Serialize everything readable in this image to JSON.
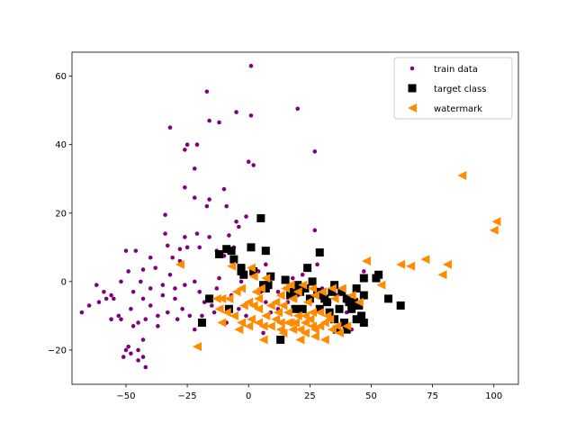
{
  "chart_data": {
    "type": "scatter",
    "title": "",
    "xlabel": "",
    "ylabel": "",
    "xlim": [
      -72,
      110
    ],
    "ylim": [
      -30,
      67
    ],
    "grid": false,
    "legend_position": "top-right",
    "x_ticks": [
      -50,
      -25,
      0,
      25,
      50,
      75,
      100
    ],
    "y_ticks": [
      -20,
      0,
      20,
      40,
      60
    ],
    "series": [
      {
        "name": "train data",
        "marker": "circle",
        "color": "#800080",
        "points": [
          [
            1,
            63
          ],
          [
            -17,
            55.5
          ],
          [
            -5,
            49.5
          ],
          [
            1,
            48.5
          ],
          [
            -16,
            47
          ],
          [
            20,
            50.5
          ],
          [
            -32,
            45
          ],
          [
            -12,
            46.5
          ],
          [
            27,
            38
          ],
          [
            -25,
            40
          ],
          [
            -21,
            40
          ],
          [
            -26,
            38.5
          ],
          [
            -22,
            33
          ],
          [
            0,
            35
          ],
          [
            2,
            34
          ],
          [
            -26,
            27.5
          ],
          [
            -22,
            24.5
          ],
          [
            -10,
            27
          ],
          [
            -9,
            22
          ],
          [
            -17,
            22
          ],
          [
            -16,
            24
          ],
          [
            -34,
            19.5
          ],
          [
            -5,
            17.5
          ],
          [
            -34,
            14
          ],
          [
            -21,
            14
          ],
          [
            -1,
            19
          ],
          [
            -4,
            16
          ],
          [
            -8,
            13.5
          ],
          [
            -16,
            13
          ],
          [
            -26,
            13
          ],
          [
            -33,
            10.5
          ],
          [
            -25,
            10
          ],
          [
            -31,
            7
          ],
          [
            -20,
            10
          ],
          [
            -28,
            9.5
          ],
          [
            -13,
            9
          ],
          [
            -6,
            10
          ],
          [
            -10,
            7.5
          ],
          [
            -3,
            3
          ],
          [
            1,
            4
          ],
          [
            4,
            3
          ],
          [
            7,
            5
          ],
          [
            -28,
            6
          ],
          [
            -40,
            7
          ],
          [
            -43,
            3.5
          ],
          [
            -38,
            4
          ],
          [
            -46,
            9
          ],
          [
            -50,
            9
          ],
          [
            -52,
            0
          ],
          [
            -56,
            -4
          ],
          [
            -47,
            -3
          ],
          [
            -49,
            3
          ],
          [
            -43,
            -5
          ],
          [
            -35,
            -4
          ],
          [
            -30,
            -5
          ],
          [
            -40,
            -7
          ],
          [
            -37,
            -10
          ],
          [
            -29,
            -11
          ],
          [
            -33,
            -9
          ],
          [
            -37,
            -13
          ],
          [
            -42,
            -11
          ],
          [
            -45,
            -12
          ],
          [
            -47,
            -13
          ],
          [
            -52,
            -11
          ],
          [
            -55,
            -5
          ],
          [
            -59,
            -3
          ],
          [
            -61,
            -6
          ],
          [
            -65,
            -7
          ],
          [
            -68,
            -9
          ],
          [
            -56,
            -11
          ],
          [
            -43,
            -17
          ],
          [
            -45,
            -20
          ],
          [
            -43,
            -22
          ],
          [
            -49,
            -19
          ],
          [
            -51,
            -22
          ],
          [
            -50,
            -20
          ],
          [
            -48,
            -21
          ],
          [
            -45,
            -23
          ],
          [
            -42,
            -25
          ],
          [
            -22,
            -14
          ],
          [
            -27,
            -8
          ],
          [
            -24,
            -10
          ],
          [
            -19,
            -10
          ],
          [
            -15,
            -7
          ],
          [
            -30,
            -2
          ],
          [
            -26,
            -1
          ],
          [
            -22,
            0
          ],
          [
            -13,
            -2
          ],
          [
            -7,
            -4
          ],
          [
            -4,
            -8
          ],
          [
            -1,
            -10
          ],
          [
            -12,
            1
          ],
          [
            -3,
            0
          ],
          [
            5,
            -3
          ],
          [
            7,
            -6
          ],
          [
            9,
            -9
          ],
          [
            12,
            -8
          ],
          [
            4,
            -12
          ],
          [
            6,
            -15
          ],
          [
            10,
            -13
          ],
          [
            15,
            -2
          ],
          [
            18,
            1
          ],
          [
            20,
            -4
          ],
          [
            22,
            2
          ],
          [
            26,
            0
          ],
          [
            30,
            -2
          ],
          [
            28,
            5
          ],
          [
            33,
            -6
          ],
          [
            36,
            -4
          ],
          [
            40,
            -9
          ],
          [
            24,
            -6
          ],
          [
            38,
            -12
          ],
          [
            42,
            -14
          ],
          [
            44,
            -7
          ],
          [
            45,
            -10
          ],
          [
            27,
            15
          ],
          [
            47,
            3
          ],
          [
            23,
            -12
          ],
          [
            16,
            -6
          ],
          [
            12,
            -3
          ],
          [
            21,
            -9
          ],
          [
            -62,
            -1
          ],
          [
            -58,
            -5
          ],
          [
            -35,
            -1
          ],
          [
            -40,
            -2
          ],
          [
            -32,
            2
          ],
          [
            -44,
            0
          ],
          [
            -48,
            -8
          ],
          [
            -53,
            -10
          ],
          [
            -20,
            -3
          ],
          [
            -18,
            -6
          ],
          [
            -9,
            -12
          ],
          [
            -14,
            -9
          ]
        ]
      },
      {
        "name": "target class",
        "marker": "square",
        "color": "#000000",
        "points": [
          [
            5,
            18.5
          ],
          [
            -7,
            9
          ],
          [
            -9,
            9.5
          ],
          [
            -12,
            8
          ],
          [
            -6,
            6.5
          ],
          [
            1,
            10
          ],
          [
            7,
            9
          ],
          [
            29,
            8.5
          ],
          [
            -3,
            3
          ],
          [
            -3,
            4
          ],
          [
            -2,
            2
          ],
          [
            2,
            3
          ],
          [
            9,
            1.5
          ],
          [
            15,
            0.5
          ],
          [
            18,
            -3
          ],
          [
            20,
            -1
          ],
          [
            24,
            4
          ],
          [
            26,
            0
          ],
          [
            21,
            -3
          ],
          [
            23,
            -2
          ],
          [
            28,
            -3
          ],
          [
            32,
            -6
          ],
          [
            34,
            -3
          ],
          [
            35,
            -1
          ],
          [
            38,
            -3
          ],
          [
            40,
            -5
          ],
          [
            42,
            -8
          ],
          [
            44,
            -2
          ],
          [
            47,
            1
          ],
          [
            47,
            -4
          ],
          [
            52,
            1
          ],
          [
            53,
            2
          ],
          [
            57,
            -5
          ],
          [
            62,
            -7
          ],
          [
            39,
            -12
          ],
          [
            46,
            -10
          ],
          [
            47,
            -12
          ],
          [
            37,
            -8
          ],
          [
            41,
            -6
          ],
          [
            43,
            -6
          ],
          [
            45,
            -7
          ],
          [
            29,
            -8
          ],
          [
            19,
            -8
          ],
          [
            13,
            -17
          ],
          [
            -19,
            -12
          ],
          [
            -16,
            -5
          ],
          [
            -8,
            -8
          ],
          [
            7,
            -2
          ],
          [
            6,
            -1
          ],
          [
            8,
            -1
          ],
          [
            17,
            -4
          ],
          [
            25,
            -5
          ],
          [
            30,
            -4
          ],
          [
            31,
            -5
          ],
          [
            33,
            -9
          ],
          [
            35,
            -11
          ],
          [
            36,
            -14
          ],
          [
            40,
            -14
          ],
          [
            44,
            -11
          ],
          [
            22,
            -8
          ]
        ]
      },
      {
        "name": "watermark",
        "marker": "triangle-left",
        "color": "#ff8c00",
        "points": [
          [
            87,
            31
          ],
          [
            101,
            17.5
          ],
          [
            100,
            15
          ],
          [
            72,
            6.5
          ],
          [
            81,
            5
          ],
          [
            62,
            5
          ],
          [
            66,
            4.5
          ],
          [
            48,
            6
          ],
          [
            -28,
            5
          ],
          [
            -7,
            4.5
          ],
          [
            1,
            4
          ],
          [
            2,
            1.5
          ],
          [
            7,
            1
          ],
          [
            5,
            -2
          ],
          [
            -3,
            -2
          ],
          [
            -11,
            -5
          ],
          [
            -5,
            -3
          ],
          [
            4,
            -5
          ],
          [
            9,
            -7
          ],
          [
            13,
            -4
          ],
          [
            15,
            -2
          ],
          [
            17,
            -1
          ],
          [
            20,
            -3
          ],
          [
            22,
            -1
          ],
          [
            26,
            -2
          ],
          [
            27,
            -4
          ],
          [
            30,
            -3
          ],
          [
            34,
            -2
          ],
          [
            35,
            -5
          ],
          [
            38,
            -2
          ],
          [
            42,
            -4
          ],
          [
            45,
            -6
          ],
          [
            54,
            -1
          ],
          [
            79,
            2
          ],
          [
            -4,
            -14
          ],
          [
            -12,
            -8
          ],
          [
            -9,
            -9
          ],
          [
            -2,
            -7
          ],
          [
            0,
            -6
          ],
          [
            2,
            -7
          ],
          [
            4,
            -8
          ],
          [
            7,
            -10
          ],
          [
            11,
            -11
          ],
          [
            13,
            -12
          ],
          [
            16,
            -9
          ],
          [
            17,
            -12
          ],
          [
            19,
            -12
          ],
          [
            20,
            -10
          ],
          [
            21,
            -14
          ],
          [
            23,
            -10
          ],
          [
            23,
            -12
          ],
          [
            25,
            -11
          ],
          [
            26,
            -13
          ],
          [
            27,
            -14
          ],
          [
            29,
            -13
          ],
          [
            31,
            -12
          ],
          [
            33,
            -11
          ],
          [
            34,
            -14
          ],
          [
            36,
            -13
          ],
          [
            40,
            -13
          ],
          [
            16,
            -12
          ],
          [
            13,
            -14
          ],
          [
            14,
            -15
          ],
          [
            6,
            -13
          ],
          [
            4,
            -12
          ],
          [
            6,
            -17
          ],
          [
            21,
            -17
          ],
          [
            23,
            -15
          ],
          [
            27,
            -16
          ],
          [
            31,
            -17
          ],
          [
            -21,
            -19
          ],
          [
            -11,
            -12
          ],
          [
            -6,
            -10
          ],
          [
            3,
            -3
          ],
          [
            11,
            -6
          ],
          [
            14,
            -7
          ],
          [
            9,
            -13
          ],
          [
            0,
            -13
          ],
          [
            -3,
            -12
          ],
          [
            12,
            -9
          ],
          [
            18,
            -14
          ],
          [
            24,
            -6
          ],
          [
            29,
            -9
          ],
          [
            32,
            -10
          ],
          [
            37,
            -15
          ],
          [
            -13,
            -5
          ],
          [
            -8,
            -5
          ],
          [
            1,
            -11
          ],
          [
            18,
            -5
          ],
          [
            26,
            -9
          ]
        ]
      }
    ]
  }
}
